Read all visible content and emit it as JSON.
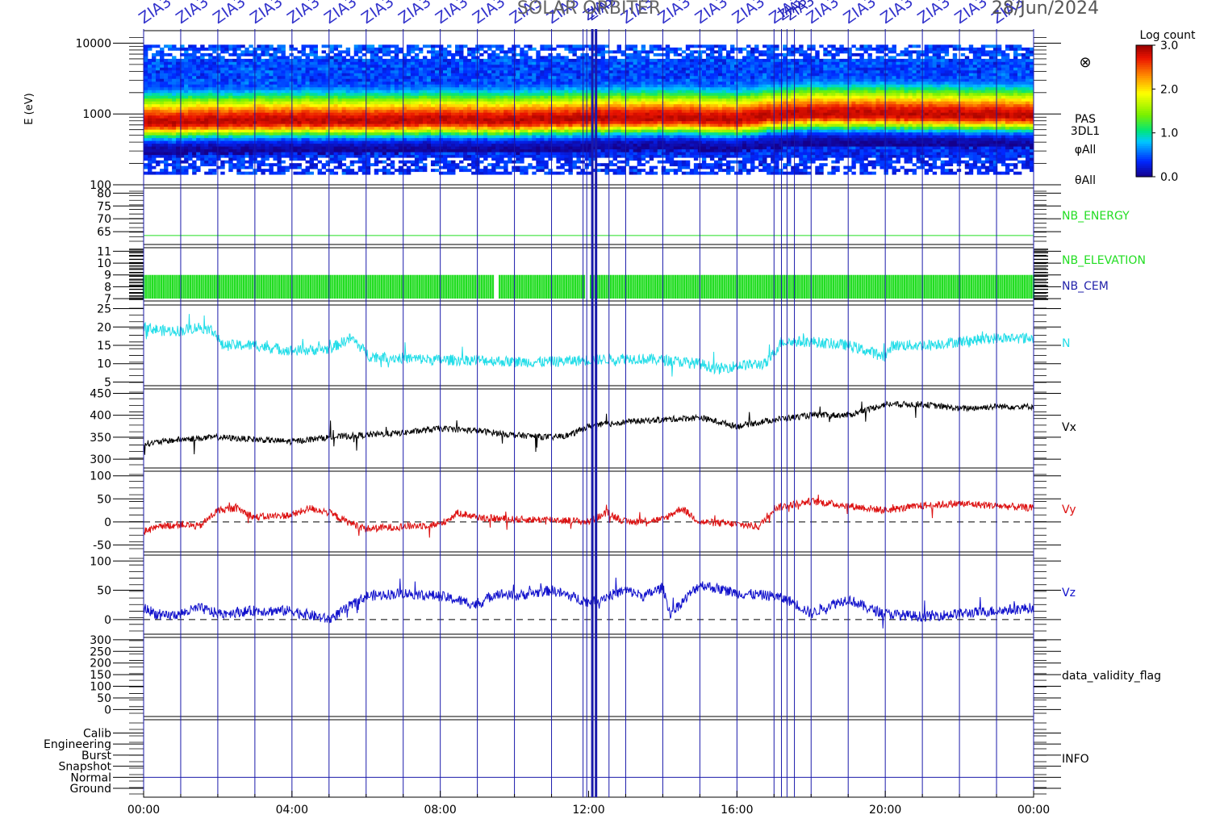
{
  "header": {
    "title": "SOLAR ORBITER",
    "date": "28/Jun/2024",
    "vline_tag": "ZIA3"
  },
  "colorbar": {
    "title": "Log count",
    "ticks": [
      "3.0",
      "2.0",
      "1.0",
      "0.0"
    ],
    "values": [
      3.0,
      2.0,
      1.0,
      0.0
    ],
    "range": [
      0,
      3
    ],
    "scheme": "rainbow"
  },
  "time_axis": {
    "range_hours": [
      0,
      24
    ],
    "major_hours": [
      0,
      4,
      8,
      12,
      16,
      20,
      24
    ],
    "labels": [
      "00:00",
      "04:00",
      "08:00",
      "12:00",
      "16:00",
      "20:00",
      "00:00"
    ]
  },
  "vlines_hours": [
    0.0,
    1.0,
    2.0,
    3.0,
    4.0,
    5.0,
    6.0,
    7.0,
    8.0,
    9.0,
    10.0,
    11.0,
    11.85,
    11.95,
    12.1,
    12.2,
    12.55,
    13.0,
    14.0,
    15.0,
    16.0,
    17.0,
    17.2,
    17.35,
    17.55,
    18.0,
    19.0,
    20.0,
    21.0,
    22.0,
    23.0,
    24.0
  ],
  "colors": {
    "frame": "#000000",
    "vline": "#1a1aaa",
    "green": "#22dd22",
    "cyan": "#22dde8",
    "red": "#dd1111",
    "blue": "#1111cc",
    "black": "#000000"
  },
  "chart_data": [
    {
      "type": "heatmap",
      "name": "spectrogram",
      "ylabel": "E (eV)",
      "yscale": "log",
      "ylim": [
        100,
        15000
      ],
      "ticks": [
        "10000",
        "1000",
        "100"
      ],
      "tick_values": [
        10000,
        1000,
        100
      ],
      "labels": [
        "PAS",
        "3DL1",
        "φAll",
        "θAll"
      ],
      "marker": "⊗",
      "peak_energy_eV": {
        "hours": [
          0,
          2,
          4,
          6,
          8,
          10,
          12,
          14,
          16,
          17,
          18,
          20,
          22,
          24
        ],
        "values": [
          750,
          780,
          800,
          790,
          820,
          800,
          850,
          880,
          820,
          950,
          1000,
          1000,
          960,
          950
        ]
      },
      "colorbar_range": [
        0,
        3
      ]
    },
    {
      "type": "line",
      "name": "NB_ENERGY",
      "label": "NB_ENERGY",
      "ticks": [
        "80",
        "75",
        "70",
        "65"
      ],
      "tick_values": [
        80,
        75,
        70,
        65
      ],
      "ylim": [
        60,
        82
      ],
      "series": [
        {
          "values": [
            63.5,
            63.5
          ]
        }
      ],
      "x": [
        0,
        24
      ]
    },
    {
      "type": "bar",
      "name": "NB_ELEVATION",
      "labels": [
        "NB_ELEVATION",
        "NB_CEM"
      ],
      "ticks": [
        "11",
        "10",
        "9",
        "8",
        "7"
      ],
      "tick_values": [
        11,
        10,
        9,
        8,
        7
      ],
      "ylim": [
        6.8,
        11.3
      ],
      "band": [
        7,
        9
      ],
      "gaps_hours": [
        9.5,
        12.0
      ]
    },
    {
      "type": "line",
      "name": "N",
      "label": "N",
      "ticks": [
        "25",
        "20",
        "15",
        "10",
        "5"
      ],
      "tick_values": [
        25,
        20,
        15,
        10,
        5
      ],
      "ylim": [
        4,
        26
      ],
      "x": [
        0,
        0.5,
        1,
        1.5,
        1.9,
        2.1,
        3,
        4,
        5,
        5.6,
        6.1,
        7,
        8,
        9,
        10,
        11,
        12,
        13,
        14,
        15,
        15.5,
        16,
        16.8,
        17.2,
        18,
        19,
        19.5,
        20,
        20.2,
        21,
        22,
        23,
        24
      ],
      "series": [
        {
          "values": [
            20,
            19,
            19,
            20,
            19,
            15,
            15,
            13.5,
            14,
            17,
            12,
            11.5,
            11,
            11,
            10.5,
            10.5,
            11,
            11.5,
            11,
            10,
            8.5,
            9.5,
            10,
            16,
            16,
            15,
            13.5,
            12,
            15,
            15,
            16,
            17,
            17
          ]
        }
      ]
    },
    {
      "type": "line",
      "name": "Vx",
      "label": "Vx",
      "ticks": [
        "450",
        "400",
        "350",
        "300"
      ],
      "tick_values": [
        450,
        400,
        350,
        300
      ],
      "ylim": [
        280,
        460
      ],
      "x": [
        0,
        1,
        2,
        3,
        4,
        5,
        6,
        7,
        8,
        9,
        10,
        11,
        11.5,
        12,
        13,
        14,
        15,
        16,
        17,
        18,
        19,
        20,
        21,
        22,
        23,
        24
      ],
      "series": [
        {
          "values": [
            335,
            345,
            350,
            345,
            340,
            350,
            355,
            360,
            370,
            365,
            355,
            350,
            355,
            375,
            385,
            390,
            395,
            375,
            390,
            400,
            400,
            425,
            425,
            415,
            420,
            420
          ]
        }
      ]
    },
    {
      "type": "line",
      "name": "Vy",
      "label": "Vy",
      "ticks": [
        "100",
        "50",
        "0",
        "-50"
      ],
      "tick_values": [
        100,
        50,
        0,
        -50
      ],
      "ylim": [
        -65,
        110
      ],
      "zero_line": true,
      "x": [
        0,
        0.5,
        1,
        1.5,
        2,
        2.5,
        3,
        4,
        4.5,
        5,
        5.5,
        6,
        7,
        8,
        8.5,
        9,
        10,
        11,
        12,
        12.5,
        13,
        14,
        14.5,
        15,
        16,
        16.6,
        17,
        18,
        19,
        20,
        21,
        22,
        23,
        24
      ],
      "series": [
        {
          "values": [
            -20,
            -10,
            -5,
            -10,
            25,
            30,
            10,
            15,
            30,
            20,
            0,
            -15,
            -10,
            -5,
            20,
            10,
            5,
            5,
            0,
            20,
            0,
            5,
            30,
            0,
            -5,
            -10,
            30,
            45,
            35,
            25,
            35,
            40,
            35,
            30
          ]
        }
      ]
    },
    {
      "type": "line",
      "name": "Vz",
      "label": "Vz",
      "ticks": [
        "100",
        "50",
        "0"
      ],
      "tick_values": [
        100,
        50,
        0
      ],
      "ylim": [
        -25,
        110
      ],
      "zero_line": true,
      "x": [
        0,
        0.5,
        1,
        1.5,
        2,
        3,
        4,
        5,
        5.5,
        6,
        7,
        8,
        9,
        9.5,
        10,
        11,
        12,
        12.5,
        13,
        13.5,
        14,
        14.2,
        15,
        16,
        17,
        17.5,
        18,
        18.5,
        19,
        19.5,
        20,
        21,
        22,
        23,
        24
      ],
      "series": [
        {
          "values": [
            20,
            5,
            10,
            20,
            10,
            15,
            15,
            0,
            20,
            40,
            45,
            40,
            25,
            45,
            40,
            50,
            30,
            40,
            50,
            40,
            55,
            10,
            60,
            45,
            40,
            30,
            10,
            25,
            35,
            20,
            10,
            5,
            10,
            15,
            20
          ]
        }
      ]
    },
    {
      "type": "line",
      "name": "data_validity_flag",
      "label": "data_validity_flag",
      "ticks": [
        "300",
        "250",
        "200",
        "150",
        "100",
        "50",
        "0"
      ],
      "tick_values": [
        300,
        250,
        200,
        150,
        100,
        50,
        0
      ],
      "ylim": [
        -30,
        310
      ],
      "series": []
    },
    {
      "type": "line",
      "name": "INFO",
      "label": "INFO",
      "ticks": [
        "Calib",
        "Engineering",
        "Burst",
        "Snapshot",
        "Normal",
        "Ground"
      ],
      "tick_values": [
        6,
        5,
        4,
        3,
        2,
        1
      ],
      "ylim": [
        0.2,
        7.2
      ],
      "series": [
        {
          "values": [
            2,
            2
          ]
        }
      ],
      "x": [
        0,
        24
      ]
    }
  ]
}
